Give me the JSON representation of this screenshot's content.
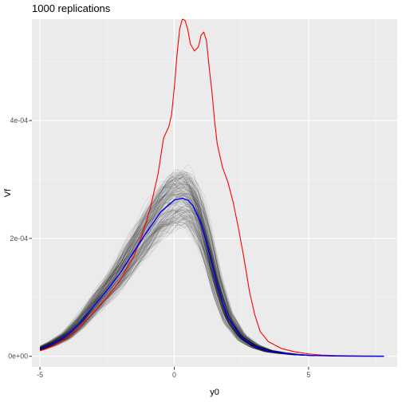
{
  "chart_data": {
    "type": "line",
    "title": "1000 replications",
    "xlabel": "y0",
    "ylabel": "Vf",
    "xlim": [
      -5.3,
      8.3
    ],
    "ylim": [
      -1.8e-05,
      0.000572
    ],
    "x_ticks": [
      -5,
      0,
      5
    ],
    "x_tick_labels": [
      "-5",
      "0",
      "5"
    ],
    "y_ticks": [
      0,
      0.0002,
      0.0004
    ],
    "y_tick_labels": [
      "0e+00",
      "2e-04",
      "4e-04"
    ],
    "grid": true,
    "legend": "none",
    "replications": 1000,
    "series": [
      {
        "color": "#ff0000",
        "x": [
          -5.0,
          -4.5,
          -4.0,
          -3.5,
          -3.0,
          -2.5,
          -2.0,
          -1.5,
          -1.2,
          -0.9,
          -0.6,
          -0.4,
          -0.2,
          -0.1,
          0.0,
          0.1,
          0.2,
          0.3,
          0.4,
          0.5,
          0.6,
          0.75,
          0.9,
          1.0,
          1.1,
          1.2,
          1.3,
          1.4,
          1.5,
          1.6,
          1.8,
          2.0,
          2.2,
          2.4,
          2.6,
          2.8,
          3.0,
          3.2,
          3.5,
          4.0,
          4.5,
          5.0,
          5.5,
          6.0,
          7.0,
          7.8
        ],
        "values": [
          9e-06,
          1.8e-05,
          3e-05,
          5e-05,
          7.5e-05,
          0.0001,
          0.00013,
          0.00017,
          0.000205,
          0.00025,
          0.00031,
          0.00037,
          0.00039,
          0.00041,
          0.000455,
          0.00051,
          0.000555,
          0.000572,
          0.00057,
          0.000555,
          0.00053,
          0.000518,
          0.000525,
          0.000545,
          0.00055,
          0.000535,
          0.00049,
          0.00045,
          0.0004,
          0.00036,
          0.00032,
          0.000295,
          0.00026,
          0.000215,
          0.000165,
          0.00011,
          7e-05,
          4.2e-05,
          2.5e-05,
          1.3e-05,
          7.5e-06,
          4e-06,
          2e-06,
          1.2e-06,
          5e-07,
          2e-07
        ]
      },
      {
        "color": "#0000ff",
        "x": [
          -5.0,
          -4.5,
          -4.0,
          -3.5,
          -3.0,
          -2.5,
          -2.0,
          -1.5,
          -1.0,
          -0.5,
          0.0,
          0.3,
          0.5,
          0.7,
          1.0,
          1.3,
          1.6,
          2.0,
          2.5,
          3.0,
          3.5,
          4.0,
          4.5,
          5.0,
          6.0,
          7.0,
          7.8
        ],
        "values": [
          1.2e-05,
          2.2e-05,
          3.5e-05,
          5.7e-05,
          8.5e-05,
          0.000112,
          0.000142,
          0.000178,
          0.000212,
          0.000245,
          0.000265,
          0.000268,
          0.000265,
          0.000255,
          0.000225,
          0.000175,
          0.00012,
          6.5e-05,
          3.2e-05,
          1.7e-05,
          9e-06,
          5.5e-06,
          3e-06,
          1.5e-06,
          6e-07,
          2e-07,
          1e-07
        ]
      }
    ]
  }
}
